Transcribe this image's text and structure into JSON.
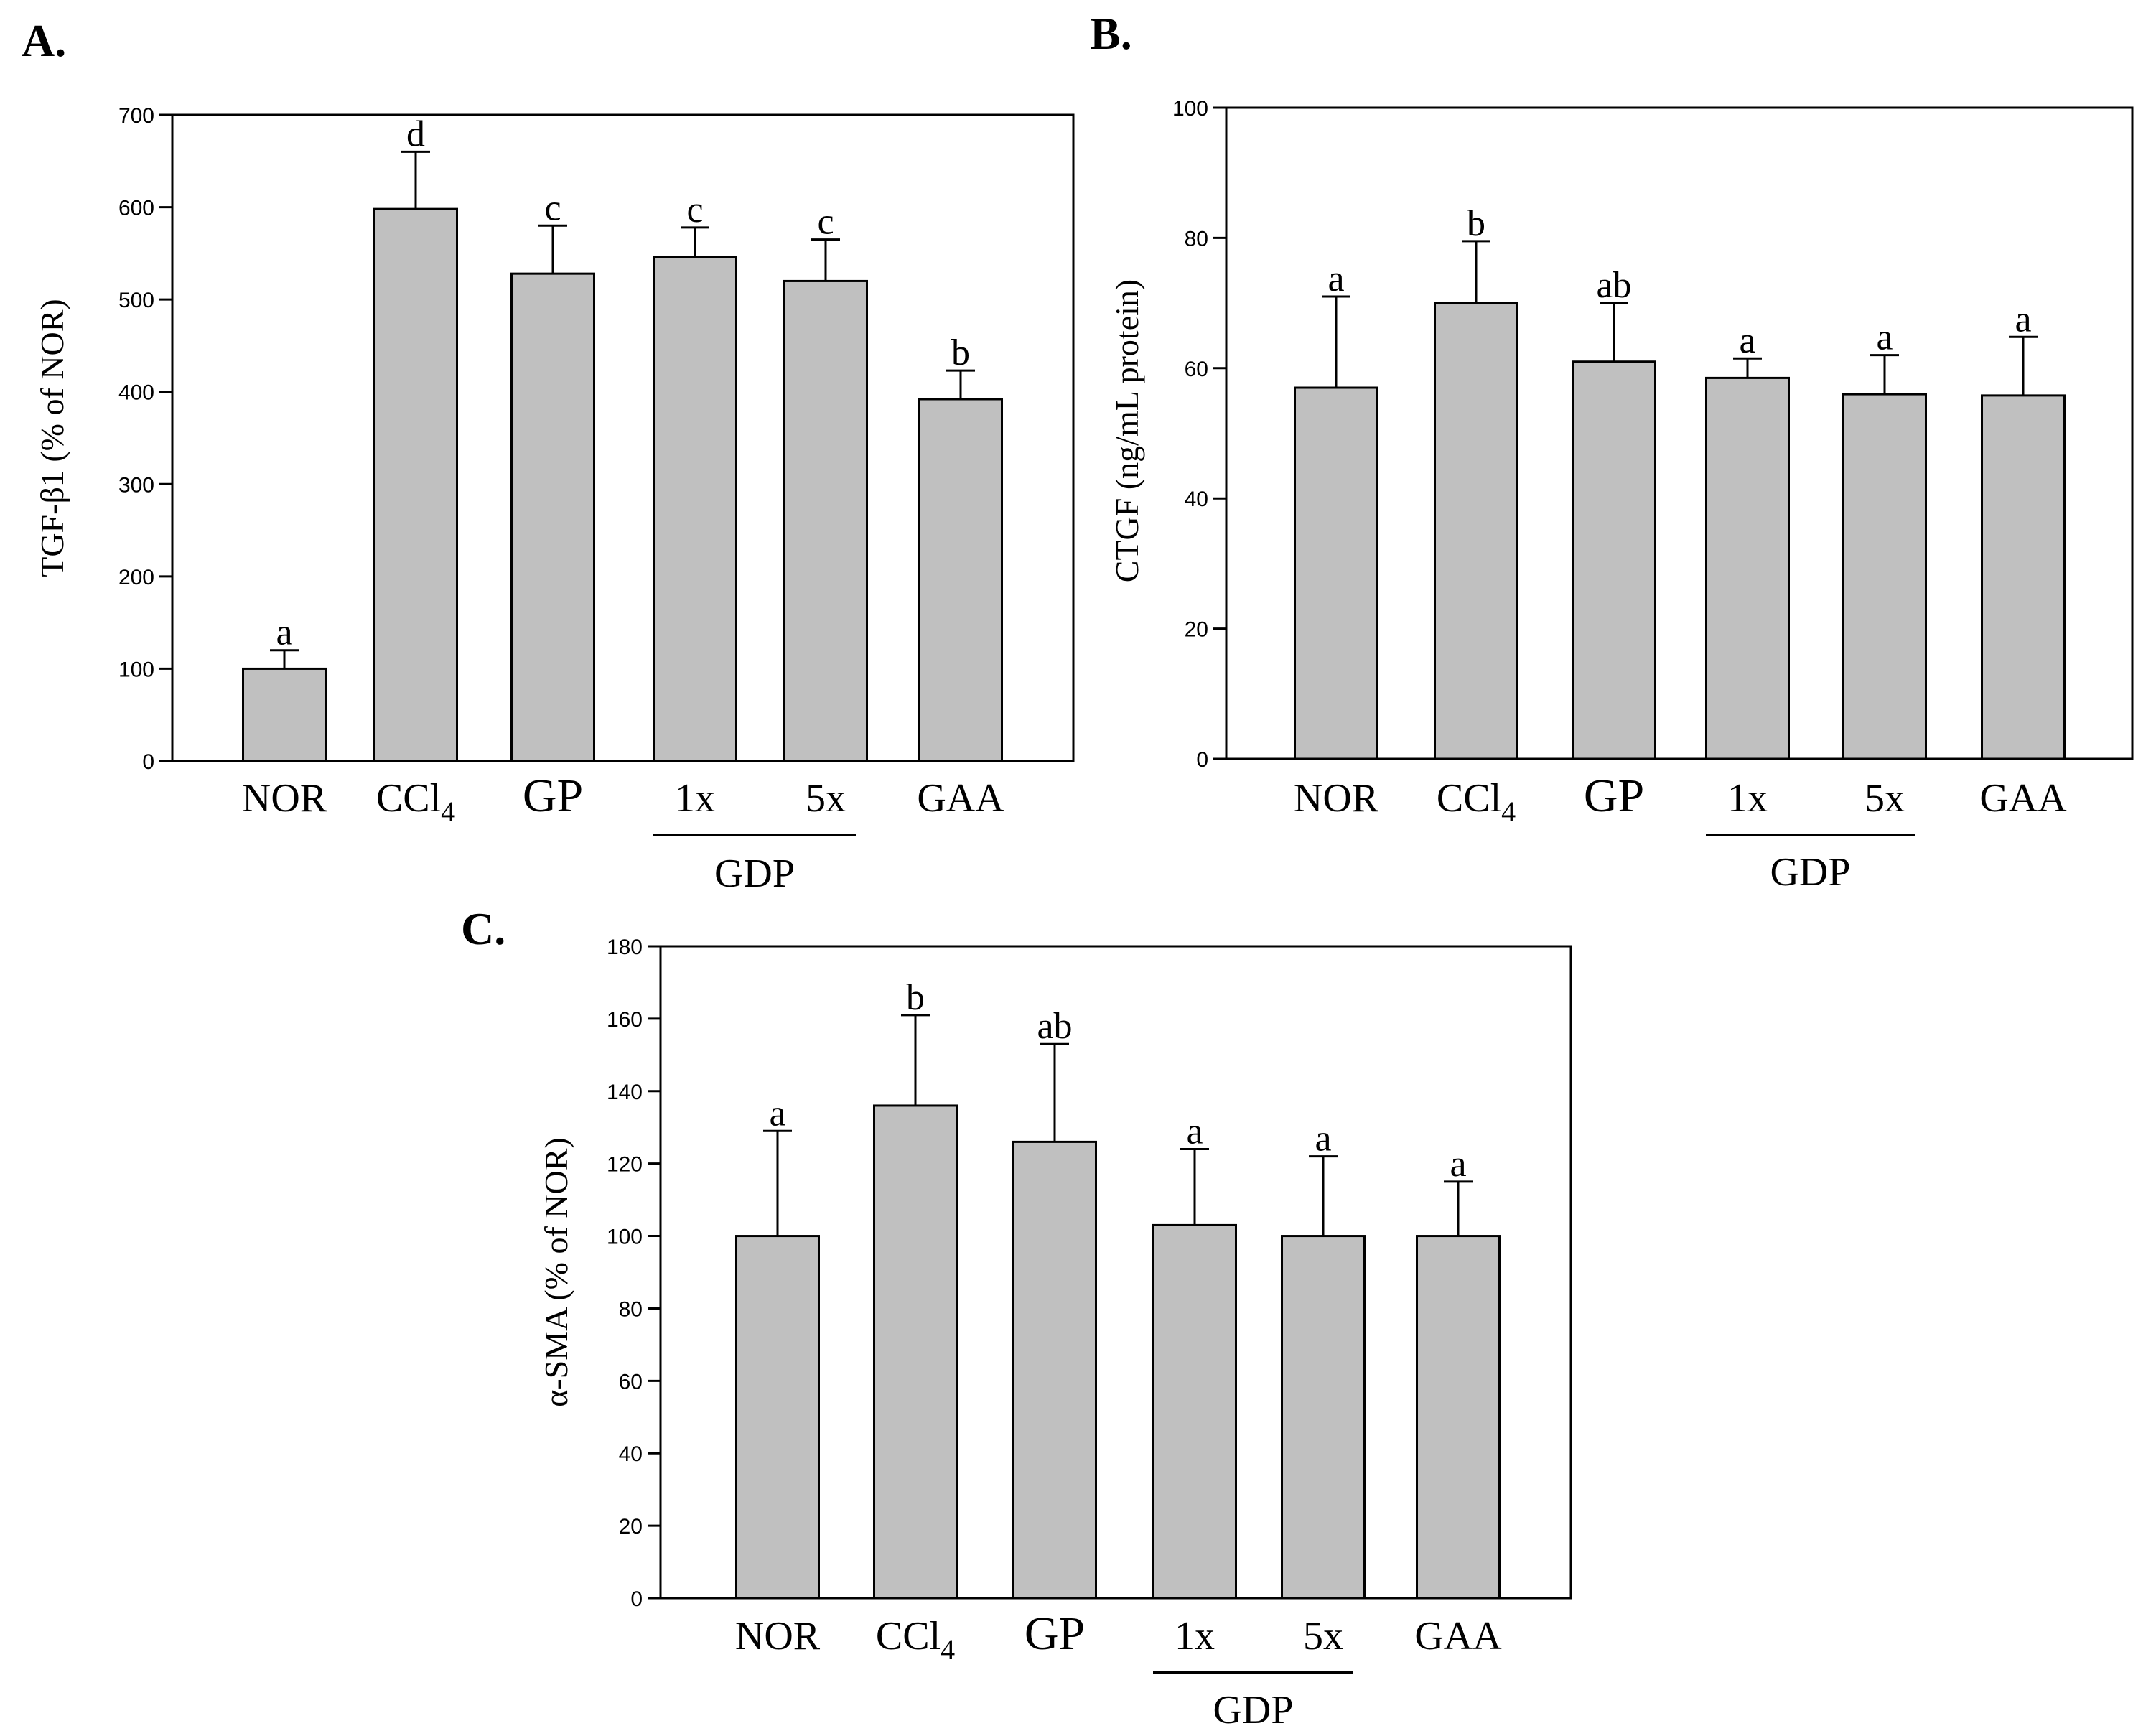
{
  "chart_data": [
    {
      "id": "A",
      "panel_label": "A.",
      "type": "bar",
      "title": "",
      "xlabel": "",
      "ylabel": "TGF-β1 (% of NOR)",
      "ylim": [
        0,
        700
      ],
      "yticks": [
        0,
        100,
        200,
        300,
        400,
        500,
        600,
        700
      ],
      "grid": false,
      "categories": [
        "NOR",
        "CCl4",
        "GP",
        "1x",
        "5x",
        "GAA"
      ],
      "values": [
        100,
        598,
        528,
        546,
        520,
        392
      ],
      "errors": [
        20,
        62,
        52,
        32,
        45,
        31
      ],
      "significance": [
        "a",
        "d",
        "c",
        "c",
        "c",
        "b"
      ],
      "group_label": "GDP",
      "group_members": [
        "1x",
        "5x"
      ]
    },
    {
      "id": "B",
      "panel_label": "B.",
      "type": "bar",
      "title": "",
      "xlabel": "",
      "ylabel": "CTGF (ng/mL protein)",
      "ylim": [
        0,
        100
      ],
      "yticks": [
        0,
        20,
        40,
        60,
        80,
        100
      ],
      "grid": false,
      "categories": [
        "NOR",
        "CCl4",
        "GP",
        "1x",
        "5x",
        "GAA"
      ],
      "values": [
        57,
        70,
        61,
        58.5,
        56,
        55.8
      ],
      "errors": [
        14,
        9.5,
        9,
        3,
        6,
        9
      ],
      "significance": [
        "a",
        "b",
        "ab",
        "a",
        "a",
        "a"
      ],
      "group_label": "GDP",
      "group_members": [
        "1x",
        "5x"
      ]
    },
    {
      "id": "C",
      "panel_label": "C.",
      "type": "bar",
      "title": "",
      "xlabel": "",
      "ylabel": "α-SMA (% of NOR)",
      "ylim": [
        0,
        180
      ],
      "yticks": [
        0,
        20,
        40,
        60,
        80,
        100,
        120,
        140,
        160,
        180
      ],
      "grid": false,
      "categories": [
        "NOR",
        "CCl4",
        "GP",
        "1x",
        "5x",
        "GAA"
      ],
      "values": [
        100,
        136,
        126,
        103,
        100,
        100
      ],
      "errors": [
        29,
        25,
        27,
        21,
        22,
        15
      ],
      "significance": [
        "a",
        "b",
        "ab",
        "a",
        "a",
        "a"
      ],
      "group_label": "GDP",
      "group_members": [
        "1x",
        "5x"
      ]
    }
  ]
}
